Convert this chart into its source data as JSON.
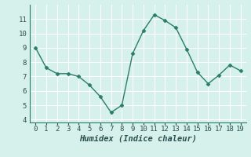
{
  "x": [
    0,
    1,
    2,
    3,
    4,
    5,
    6,
    7,
    8,
    9,
    10,
    11,
    12,
    13,
    14,
    15,
    16,
    17,
    18,
    19
  ],
  "y": [
    9.0,
    7.6,
    7.2,
    7.2,
    7.0,
    6.4,
    5.6,
    4.5,
    5.0,
    8.6,
    10.2,
    11.3,
    10.9,
    10.4,
    8.9,
    7.3,
    6.5,
    7.1,
    7.8,
    7.4
  ],
  "line_color": "#2a7d6b",
  "marker": "D",
  "marker_size": 2.5,
  "xlabel": "Humidex (Indice chaleur)",
  "xlim": [
    -0.5,
    19.5
  ],
  "ylim": [
    3.8,
    12.0
  ],
  "yticks": [
    4,
    5,
    6,
    7,
    8,
    9,
    10,
    11
  ],
  "xticks": [
    0,
    1,
    2,
    3,
    4,
    5,
    6,
    7,
    8,
    9,
    10,
    11,
    12,
    13,
    14,
    15,
    16,
    17,
    18,
    19
  ],
  "bg_color": "#d6f0ec",
  "grid_color": "#ffffff",
  "tick_label_fontsize": 6.5,
  "xlabel_fontsize": 7.5
}
